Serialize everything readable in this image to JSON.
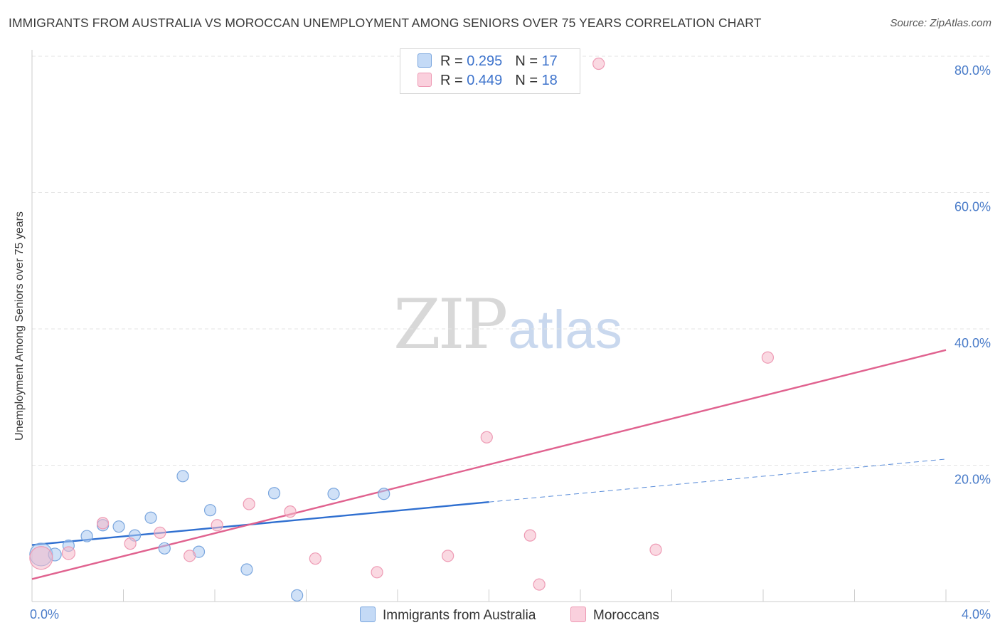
{
  "title": "IMMIGRANTS FROM AUSTRALIA VS MOROCCAN UNEMPLOYMENT AMONG SENIORS OVER 75 YEARS CORRELATION CHART",
  "source": "Source: ZipAtlas.com",
  "watermark": {
    "zip": "ZIP",
    "atlas": "atlas"
  },
  "legend": {
    "series1": {
      "r_label": "R =",
      "r_value": "0.295",
      "n_label": "N =",
      "n_value": "17"
    },
    "series2": {
      "r_label": "R =",
      "r_value": "0.449",
      "n_label": "N =",
      "n_value": "18"
    }
  },
  "colors": {
    "blue_fill": "#a9c8f0",
    "blue_stroke": "#7aa6de",
    "blue_line": "#2f6fd0",
    "pink_fill": "#f6b9cb",
    "pink_stroke": "#ee9ab4",
    "pink_line": "#e0628f",
    "grid": "#e3e3e3",
    "tick": "#4a7cc9"
  },
  "chart_data": {
    "type": "scatter",
    "title": "IMMIGRANTS FROM AUSTRALIA VS MOROCCAN UNEMPLOYMENT AMONG SENIORS OVER 75 YEARS CORRELATION CHART",
    "xlabel": "",
    "ylabel": "Unemployment Among Seniors over 75 years",
    "xlim": [
      0,
      4.0
    ],
    "ylim": [
      0,
      82
    ],
    "x_ticks": [
      {
        "v": 0,
        "label": "0.0%"
      },
      {
        "v": 4.0,
        "label": "4.0%"
      }
    ],
    "y_ticks": [
      {
        "v": 20,
        "label": "20.0%"
      },
      {
        "v": 40,
        "label": "40.0%"
      },
      {
        "v": 60,
        "label": "60.0%"
      },
      {
        "v": 80,
        "label": "80.0%"
      }
    ],
    "series": [
      {
        "name": "Immigrants from Australia",
        "color_key": "blue",
        "points": [
          {
            "x": 0.04,
            "y": 6.9,
            "s": 16
          },
          {
            "x": 0.1,
            "y": 6.9,
            "s": 9
          },
          {
            "x": 0.16,
            "y": 8.2,
            "s": 8
          },
          {
            "x": 0.24,
            "y": 9.6,
            "s": 8
          },
          {
            "x": 0.31,
            "y": 11.2,
            "s": 8
          },
          {
            "x": 0.38,
            "y": 11.0,
            "s": 8
          },
          {
            "x": 0.45,
            "y": 9.7,
            "s": 8
          },
          {
            "x": 0.52,
            "y": 12.3,
            "s": 8
          },
          {
            "x": 0.58,
            "y": 7.8,
            "s": 8
          },
          {
            "x": 0.66,
            "y": 18.4,
            "s": 8
          },
          {
            "x": 0.73,
            "y": 7.3,
            "s": 8
          },
          {
            "x": 0.78,
            "y": 13.4,
            "s": 8
          },
          {
            "x": 0.94,
            "y": 4.7,
            "s": 8
          },
          {
            "x": 1.06,
            "y": 15.9,
            "s": 8
          },
          {
            "x": 1.16,
            "y": 0.9,
            "s": 8
          },
          {
            "x": 1.32,
            "y": 15.8,
            "s": 8
          },
          {
            "x": 1.54,
            "y": 15.8,
            "s": 8
          }
        ],
        "trend": {
          "x0": 0,
          "y0": 8.3,
          "x1": 2.0,
          "y1": 14.6
        },
        "trend_ext": {
          "x0": 2.0,
          "y0": 14.6,
          "x1": 4.0,
          "y1": 20.9
        }
      },
      {
        "name": "Moroccans",
        "color_key": "pink",
        "points": [
          {
            "x": 0.04,
            "y": 6.4,
            "s": 16
          },
          {
            "x": 0.16,
            "y": 7.1,
            "s": 9
          },
          {
            "x": 0.31,
            "y": 11.5,
            "s": 8
          },
          {
            "x": 0.43,
            "y": 8.5,
            "s": 8
          },
          {
            "x": 0.56,
            "y": 10.1,
            "s": 8
          },
          {
            "x": 0.69,
            "y": 6.7,
            "s": 8
          },
          {
            "x": 0.81,
            "y": 11.2,
            "s": 8
          },
          {
            "x": 0.95,
            "y": 14.3,
            "s": 8
          },
          {
            "x": 1.13,
            "y": 13.2,
            "s": 8
          },
          {
            "x": 1.24,
            "y": 6.3,
            "s": 8
          },
          {
            "x": 1.51,
            "y": 4.3,
            "s": 8
          },
          {
            "x": 1.82,
            "y": 6.7,
            "s": 8
          },
          {
            "x": 1.99,
            "y": 24.1,
            "s": 8
          },
          {
            "x": 2.18,
            "y": 9.7,
            "s": 8
          },
          {
            "x": 2.22,
            "y": 2.5,
            "s": 8
          },
          {
            "x": 2.48,
            "y": 78.9,
            "s": 8
          },
          {
            "x": 2.73,
            "y": 7.6,
            "s": 8
          },
          {
            "x": 3.22,
            "y": 35.8,
            "s": 8
          }
        ],
        "trend": {
          "x0": 0,
          "y0": 3.3,
          "x1": 4.0,
          "y1": 36.9
        }
      }
    ]
  },
  "bottom_legend": {
    "series1": "Immigrants from Australia",
    "series2": "Moroccans"
  }
}
